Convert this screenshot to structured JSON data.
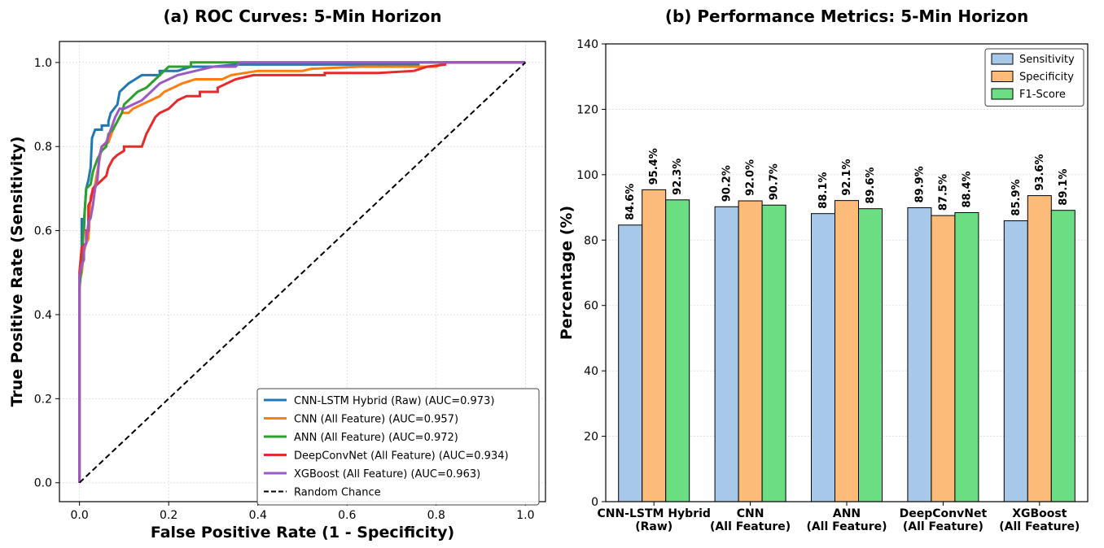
{
  "chart_data": [
    {
      "type": "line",
      "title": "(a) ROC Curves: 5-Min Horizon",
      "xlabel": "False Positive Rate (1 - Specificity)",
      "ylabel": "True Positive Rate (Sensitivity)",
      "xlim": [
        -0.045,
        1.045
      ],
      "ylim": [
        -0.045,
        1.05
      ],
      "xticks": [
        "0.0",
        "0.2",
        "0.4",
        "0.6",
        "0.8",
        "1.0"
      ],
      "yticks": [
        "0.0",
        "0.2",
        "0.4",
        "0.6",
        "0.8",
        "1.0"
      ],
      "grid": true,
      "legend_position": "lower-right",
      "series": [
        {
          "name": "CNN-LSTM Hybrid (Raw) (AUC=0.973)",
          "color": "#1f77b4",
          "points": [
            [
              0,
              0
            ],
            [
              0,
              0.48
            ],
            [
              0.005,
              0.55
            ],
            [
              0.005,
              0.63
            ],
            [
              0.01,
              0.6
            ],
            [
              0.012,
              0.65
            ],
            [
              0.015,
              0.7
            ],
            [
              0.02,
              0.72
            ],
            [
              0.025,
              0.75
            ],
            [
              0.028,
              0.82
            ],
            [
              0.035,
              0.84
            ],
            [
              0.05,
              0.84
            ],
            [
              0.05,
              0.85
            ],
            [
              0.065,
              0.85
            ],
            [
              0.065,
              0.86
            ],
            [
              0.07,
              0.88
            ],
            [
              0.085,
              0.9
            ],
            [
              0.09,
              0.93
            ],
            [
              0.1,
              0.94
            ],
            [
              0.11,
              0.95
            ],
            [
              0.125,
              0.96
            ],
            [
              0.14,
              0.97
            ],
            [
              0.18,
              0.97
            ],
            [
              0.18,
              0.98
            ],
            [
              0.22,
              0.98
            ],
            [
              0.25,
              0.99
            ],
            [
              0.3,
              0.99
            ],
            [
              0.35,
              0.995
            ],
            [
              0.45,
              0.995
            ],
            [
              0.55,
              0.995
            ],
            [
              0.65,
              0.995
            ],
            [
              0.76,
              0.995
            ],
            [
              0.76,
              1.0
            ],
            [
              1.0,
              1.0
            ]
          ]
        },
        {
          "name": "CNN (All Feature) (AUC=0.957)",
          "color": "#ff7f0e",
          "points": [
            [
              0,
              0
            ],
            [
              0,
              0.48
            ],
            [
              0.005,
              0.5
            ],
            [
              0.01,
              0.55
            ],
            [
              0.015,
              0.57
            ],
            [
              0.02,
              0.58
            ],
            [
              0.025,
              0.68
            ],
            [
              0.035,
              0.71
            ],
            [
              0.045,
              0.77
            ],
            [
              0.05,
              0.8
            ],
            [
              0.065,
              0.81
            ],
            [
              0.075,
              0.84
            ],
            [
              0.085,
              0.86
            ],
            [
              0.095,
              0.88
            ],
            [
              0.11,
              0.88
            ],
            [
              0.12,
              0.89
            ],
            [
              0.14,
              0.9
            ],
            [
              0.16,
              0.91
            ],
            [
              0.18,
              0.92
            ],
            [
              0.19,
              0.93
            ],
            [
              0.21,
              0.94
            ],
            [
              0.23,
              0.95
            ],
            [
              0.26,
              0.96
            ],
            [
              0.32,
              0.96
            ],
            [
              0.34,
              0.97
            ],
            [
              0.4,
              0.98
            ],
            [
              0.5,
              0.98
            ],
            [
              0.52,
              0.985
            ],
            [
              0.63,
              0.99
            ],
            [
              0.8,
              0.99
            ],
            [
              0.82,
              1.0
            ],
            [
              1.0,
              1.0
            ]
          ]
        },
        {
          "name": "ANN (All Feature) (AUC=0.972)",
          "color": "#2ca02c",
          "points": [
            [
              0,
              0
            ],
            [
              0,
              0.46
            ],
            [
              0.005,
              0.52
            ],
            [
              0.01,
              0.62
            ],
            [
              0.015,
              0.7
            ],
            [
              0.025,
              0.71
            ],
            [
              0.03,
              0.74
            ],
            [
              0.04,
              0.77
            ],
            [
              0.05,
              0.79
            ],
            [
              0.06,
              0.8
            ],
            [
              0.065,
              0.83
            ],
            [
              0.075,
              0.84
            ],
            [
              0.085,
              0.86
            ],
            [
              0.095,
              0.88
            ],
            [
              0.1,
              0.9
            ],
            [
              0.11,
              0.91
            ],
            [
              0.13,
              0.93
            ],
            [
              0.15,
              0.94
            ],
            [
              0.17,
              0.96
            ],
            [
              0.19,
              0.98
            ],
            [
              0.2,
              0.99
            ],
            [
              0.25,
              0.99
            ],
            [
              0.25,
              1.0
            ],
            [
              0.63,
              1.0
            ],
            [
              1.0,
              1.0
            ]
          ]
        },
        {
          "name": "DeepConvNet (All Feature) (AUC=0.934)",
          "color": "#e8292b",
          "points": [
            [
              0,
              0
            ],
            [
              0,
              0.5
            ],
            [
              0.005,
              0.56
            ],
            [
              0.015,
              0.57
            ],
            [
              0.015,
              0.6
            ],
            [
              0.02,
              0.6
            ],
            [
              0.02,
              0.66
            ],
            [
              0.025,
              0.67
            ],
            [
              0.03,
              0.7
            ],
            [
              0.04,
              0.71
            ],
            [
              0.05,
              0.72
            ],
            [
              0.06,
              0.73
            ],
            [
              0.065,
              0.75
            ],
            [
              0.075,
              0.77
            ],
            [
              0.085,
              0.78
            ],
            [
              0.1,
              0.79
            ],
            [
              0.1,
              0.8
            ],
            [
              0.14,
              0.8
            ],
            [
              0.15,
              0.83
            ],
            [
              0.16,
              0.85
            ],
            [
              0.17,
              0.87
            ],
            [
              0.18,
              0.88
            ],
            [
              0.2,
              0.89
            ],
            [
              0.22,
              0.91
            ],
            [
              0.24,
              0.92
            ],
            [
              0.27,
              0.92
            ],
            [
              0.27,
              0.93
            ],
            [
              0.31,
              0.93
            ],
            [
              0.31,
              0.94
            ],
            [
              0.33,
              0.95
            ],
            [
              0.35,
              0.96
            ],
            [
              0.39,
              0.97
            ],
            [
              0.45,
              0.97
            ],
            [
              0.55,
              0.97
            ],
            [
              0.55,
              0.975
            ],
            [
              0.67,
              0.975
            ],
            [
              0.75,
              0.98
            ],
            [
              0.78,
              0.99
            ],
            [
              0.82,
              0.995
            ],
            [
              0.82,
              1.0
            ],
            [
              1.0,
              1.0
            ]
          ]
        },
        {
          "name": "XGBoost (All Feature) (AUC=0.963)",
          "color": "#9b59c4",
          "points": [
            [
              0,
              0
            ],
            [
              0,
              0.49
            ],
            [
              0.005,
              0.52
            ],
            [
              0.01,
              0.53
            ],
            [
              0.01,
              0.56
            ],
            [
              0.015,
              0.57
            ],
            [
              0.02,
              0.62
            ],
            [
              0.025,
              0.63
            ],
            [
              0.03,
              0.66
            ],
            [
              0.035,
              0.7
            ],
            [
              0.04,
              0.72
            ],
            [
              0.045,
              0.78
            ],
            [
              0.05,
              0.8
            ],
            [
              0.06,
              0.81
            ],
            [
              0.07,
              0.84
            ],
            [
              0.08,
              0.87
            ],
            [
              0.09,
              0.89
            ],
            [
              0.1,
              0.89
            ],
            [
              0.12,
              0.9
            ],
            [
              0.14,
              0.91
            ],
            [
              0.16,
              0.93
            ],
            [
              0.18,
              0.95
            ],
            [
              0.2,
              0.96
            ],
            [
              0.22,
              0.97
            ],
            [
              0.26,
              0.98
            ],
            [
              0.3,
              0.99
            ],
            [
              0.35,
              0.99
            ],
            [
              0.36,
              1.0
            ],
            [
              1.0,
              1.0
            ]
          ]
        },
        {
          "name": "Random Chance",
          "color": "#000000",
          "dashed": true,
          "points": [
            [
              0,
              0
            ],
            [
              1,
              1
            ]
          ]
        }
      ]
    },
    {
      "type": "bar",
      "title": "(b) Performance Metrics: 5-Min Horizon",
      "xlabel": "",
      "ylabel": "Percentage (%)",
      "ylim": [
        0,
        140
      ],
      "yticks": [
        "0",
        "20",
        "40",
        "60",
        "80",
        "100",
        "120",
        "140"
      ],
      "grid": true,
      "legend_position": "top-right",
      "categories": [
        [
          "CNN-LSTM Hybrid",
          "(Raw)"
        ],
        [
          "CNN",
          "(All Feature)"
        ],
        [
          "ANN",
          "(All Feature)"
        ],
        [
          "DeepConvNet",
          "(All Feature)"
        ],
        [
          "XGBoost",
          "(All Feature)"
        ]
      ],
      "series": [
        {
          "name": "Sensitivity",
          "color": "#a8c8ea",
          "values": [
            84.6,
            90.2,
            88.1,
            89.9,
            85.9
          ],
          "labels": [
            "84.6%",
            "90.2%",
            "88.1%",
            "89.9%",
            "85.9%"
          ]
        },
        {
          "name": "Specificity",
          "color": "#fdbb7a",
          "values": [
            95.4,
            92.0,
            92.1,
            87.5,
            93.6
          ],
          "labels": [
            "95.4%",
            "92.0%",
            "92.1%",
            "87.5%",
            "93.6%"
          ]
        },
        {
          "name": "F1-Score",
          "color": "#6bdd82",
          "values": [
            92.3,
            90.7,
            89.6,
            88.4,
            89.1
          ],
          "labels": [
            "92.3%",
            "90.7%",
            "89.6%",
            "88.4%",
            "89.1%"
          ]
        }
      ]
    }
  ]
}
